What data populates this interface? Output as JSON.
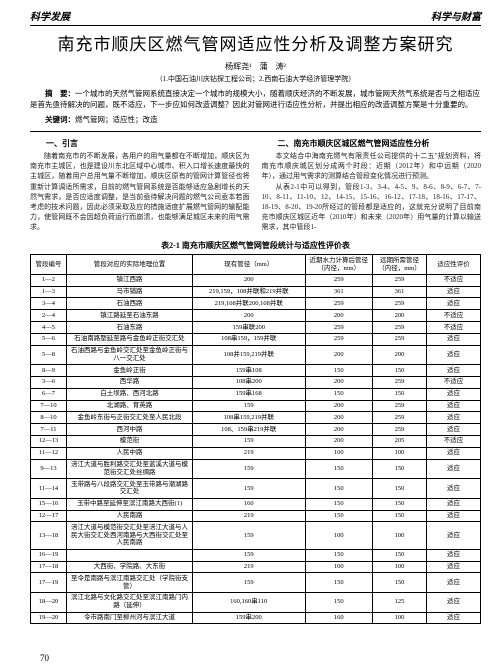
{
  "header_left": "科学发展",
  "header_right": "科学与财富",
  "title": "南充市顺庆区燃气管网适应性分析及调整方案研究",
  "authors": "杨辉尧¹　蒲　涛²",
  "affil": "（1.中国石油川庆钻探工程公司；2.西南石油大学经济管理学院）",
  "abstract_label": "摘　要：",
  "abstract_text": "一个城市的天然气管网系统直接决定一个城市的规模大小，随着顺庆经济的不断发展，城市管网天然气系统是否与之相适应是首先亟待解决的问题，既不适应，下一步应如何改造调整？因此对管网进行适应性分析，并提出相应的改造调整方案是十分重要的。",
  "keywords_label": "关键词：",
  "keywords_text": "燃气管网；适应性；改造",
  "sec1_h": "一、引言",
  "sec1_p": "随着南充市的不断发展，各用户的用气量都在不断增加，顺庆区为南充市主城区，也是建设川东北区域中心城市、积入口增长速度最快的主城区，随着用户总用气量不断增加，顺庆区原有的管网计算管径也将重新计算调适所需求，目前的燃气管网系统是否能够适应急剧增长的天然气需求，是否应适度调整，是当前亟待解决问题的燃气公司亟本若面考虑的技术问题，因此必须采取及应的措施适度扩展燃气管网的输配能力，使管网既不会因超负荷运行而崩溃，也能够满足城区未来的用气需求。",
  "sec2_h": "二、南充市顺庆区城区燃气管网适应性分析",
  "sec2_p1": "本文结合中海南充燃气有限责任公司提供的十二五\"规划资料，将南充市顺庆城区划分成两个时段：近期（2012年）和中远期（2020年），通过用气需求的测算结合管段变化情况进行预测。",
  "sec2_p2": "从表2-1中可以得到，管段1-3、3-4、4-5、9、8-6、8-9、6-7、7-10、8-11、11-10、12、14-15、15-16、16-12、17-18、18-16、17-17、18-19、8-20、19-20所经过的管段都是适应的，这就充分说明了目前南充市顺庆区城区近年（2010年）和未来（2020年）用气量的计算以输送需求，其中管段1-",
  "table_caption": "表2-1 南充市顺庆区燃气管网管段统计与适应性评价表",
  "thead": [
    "管段编号",
    "管段对应的实际地理位置",
    "现有管径（mm）",
    "近期水力计算后管径（内径，mm）",
    "远期所需管径（内径，mm）",
    "适应性评价"
  ],
  "rows": [
    [
      "1—2",
      "镇江西路",
      "200",
      "259",
      "259",
      "不适应"
    ],
    [
      "1—3",
      "马市铺路",
      "219,159，108并联和219并联",
      "361",
      "361",
      "适应"
    ],
    [
      "3—4",
      "石油西路",
      "219,108并联200,108并联",
      "259",
      "259",
      "适应"
    ],
    [
      "2—4",
      "镇江路延至石油东路",
      "200",
      "200",
      "200",
      "不适应"
    ],
    [
      "4—5",
      "石油东路",
      "159串联200",
      "259",
      "259",
      "不适应"
    ],
    [
      "5—6",
      "石油南路塈延至路与金鱼岭正街交汇处",
      "108串159，159并联",
      "259",
      "259",
      "适应"
    ],
    [
      "5—8",
      "石油西路与金鱼岭交汇处至金鱼岭正街与八一交汇处",
      "108并159,219并联",
      "200",
      "200",
      "适应"
    ],
    [
      "8—9",
      "金鱼岭正街",
      "159串108",
      "150",
      "150",
      "适应"
    ],
    [
      "3—6",
      "西华路",
      "108串200",
      "200",
      "259",
      "不适应"
    ],
    [
      "6—7",
      "白土坝路、西河北路",
      "159串168",
      "150",
      "150",
      "适应"
    ],
    [
      "7—10",
      "北湖路、育英路",
      "159",
      "200",
      "259",
      "适应"
    ],
    [
      "8—10",
      "金鱼岭东街与正街交汇处至人民北段",
      "108串159,219并联",
      "200",
      "259",
      "适应"
    ],
    [
      "7—11",
      "西河中路",
      "108、159串219并联",
      "200",
      "259",
      "适应"
    ],
    [
      "12—13",
      "模范街",
      "159",
      "200",
      "205",
      "不适应"
    ],
    [
      "11—12",
      "人民中路",
      "219",
      "100",
      "100",
      "适应"
    ],
    [
      "9—13",
      "涪江大道与胜利路交汇处至蓝溪大道与模范街交汇处丝绸路",
      "159",
      "150",
      "150",
      "适应"
    ],
    [
      "11—14",
      "玉带路与八段路交汇处至玉带路与潮湖路交汇处",
      "159",
      "150",
      "150",
      "适应"
    ],
    [
      "15—16",
      "玉带中路至延伸至滨江南路大西街(1)",
      "160",
      "150",
      "150",
      "适应"
    ],
    [
      "12—17",
      "人民南路",
      "219",
      "150",
      "150",
      "适应"
    ],
    [
      "13—18",
      "涪江大道与模范街交汇处至涪江大道与人民大街交汇处西河南路与大西街交汇处至人民南路",
      "159",
      "100",
      "100",
      "适应"
    ],
    [
      "16—19",
      "",
      "159",
      "150",
      "150",
      "适应"
    ],
    [
      "17—18",
      "大西街、学院路、大东街",
      "219",
      "100",
      "100",
      "适应"
    ],
    [
      "17—19",
      "至令是南路与滨江南路交汇处（学院街支管）",
      "159",
      "150",
      "150",
      "适应"
    ],
    [
      "18—20",
      "滨江北路与文化路交汇处至滨江南路门内路（延伸）",
      "160,160串110",
      "150",
      "125",
      "适应"
    ],
    [
      "19—20",
      "令市路南门至柳州河与滨江大道",
      "159串200",
      "160",
      "100",
      "适应"
    ]
  ],
  "page_num": "70"
}
